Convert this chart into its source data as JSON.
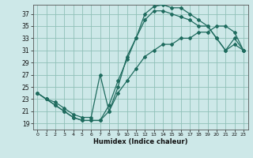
{
  "xlabel": "Humidex (Indice chaleur)",
  "background_color": "#cde8e8",
  "grid_color": "#90c0b8",
  "line_color": "#1e6b5e",
  "xlim": [
    -0.5,
    23.5
  ],
  "ylim": [
    18.0,
    38.5
  ],
  "xticks": [
    0,
    1,
    2,
    3,
    4,
    5,
    6,
    7,
    8,
    9,
    10,
    11,
    12,
    13,
    14,
    15,
    16,
    17,
    18,
    19,
    20,
    21,
    22,
    23
  ],
  "yticks": [
    19,
    21,
    23,
    25,
    27,
    29,
    31,
    33,
    35,
    37
  ],
  "curve1_x": [
    0,
    1,
    2,
    3,
    4,
    5,
    6,
    7,
    8,
    9,
    10,
    11,
    12,
    13,
    14,
    15,
    16,
    17,
    18,
    19,
    20,
    21,
    22,
    23
  ],
  "curve1_y": [
    24,
    23,
    22,
    21,
    20,
    19.5,
    19.5,
    19.5,
    21,
    25,
    30,
    33,
    37,
    38.2,
    38.5,
    38.0,
    38.0,
    37.0,
    36.0,
    35.0,
    33,
    31,
    32,
    31
  ],
  "curve2_x": [
    0,
    1,
    2,
    3,
    4,
    5,
    6,
    7,
    8,
    9,
    10,
    11,
    12,
    13,
    14,
    15,
    16,
    17,
    18,
    19,
    20,
    21,
    22,
    23
  ],
  "curve2_y": [
    24,
    23,
    22,
    21,
    20,
    19.5,
    19.5,
    19.5,
    22,
    26,
    29.5,
    33,
    36,
    37.5,
    37.5,
    37.0,
    36.5,
    36.0,
    35.0,
    35.0,
    33,
    31,
    33,
    31
  ],
  "curve3_x": [
    0,
    1,
    2,
    3,
    4,
    5,
    6,
    7,
    8,
    9,
    10,
    11,
    12,
    13,
    14,
    15,
    16,
    17,
    18,
    19,
    20,
    21,
    22,
    23
  ],
  "curve3_y": [
    24,
    23,
    22.5,
    21.5,
    20.5,
    20,
    20,
    27,
    21,
    24,
    26,
    28,
    30,
    31,
    32,
    32,
    33,
    33,
    34,
    34,
    35,
    35,
    34,
    31
  ]
}
